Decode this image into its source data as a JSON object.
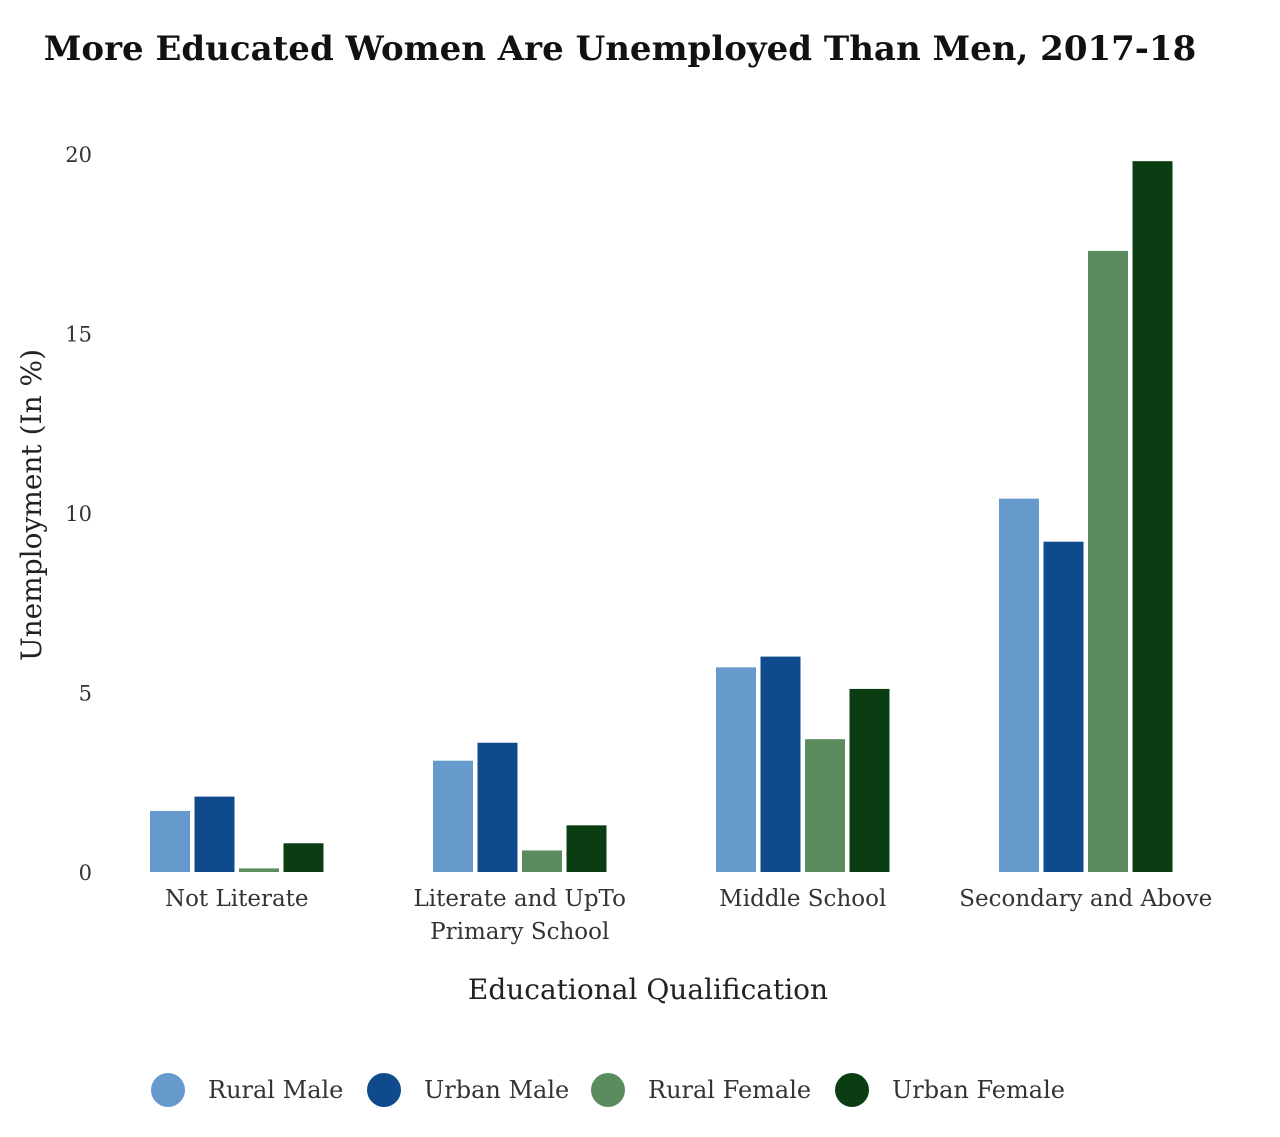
{
  "chart_data": {
    "type": "bar",
    "title": "More Educated Women Are Unemployed Than Men, 2017-18",
    "xlabel": "Educational Qualification",
    "ylabel": "Unemployment (In %)",
    "ylim": [
      0,
      20
    ],
    "yticks": [
      "0",
      "5",
      "10",
      "15",
      "20"
    ],
    "grid": false,
    "legend_position": "bottom",
    "categories": [
      [
        "Not Literate"
      ],
      [
        "Literate and UpTo",
        "Primary School"
      ],
      [
        "Middle School"
      ],
      [
        "Secondary and Above"
      ]
    ],
    "series": [
      {
        "name": "Rural Male",
        "color": "#6699cc",
        "values": [
          1.7,
          3.1,
          5.7,
          10.4
        ]
      },
      {
        "name": "Urban Male",
        "color": "#0e4a8c",
        "values": [
          2.1,
          3.6,
          6.0,
          9.2
        ]
      },
      {
        "name": "Rural Female",
        "color": "#5b8c5e",
        "values": [
          0.1,
          0.6,
          3.7,
          17.3
        ]
      },
      {
        "name": "Urban Female",
        "color": "#0b3d13",
        "values": [
          0.8,
          1.3,
          5.1,
          19.8
        ]
      }
    ]
  }
}
